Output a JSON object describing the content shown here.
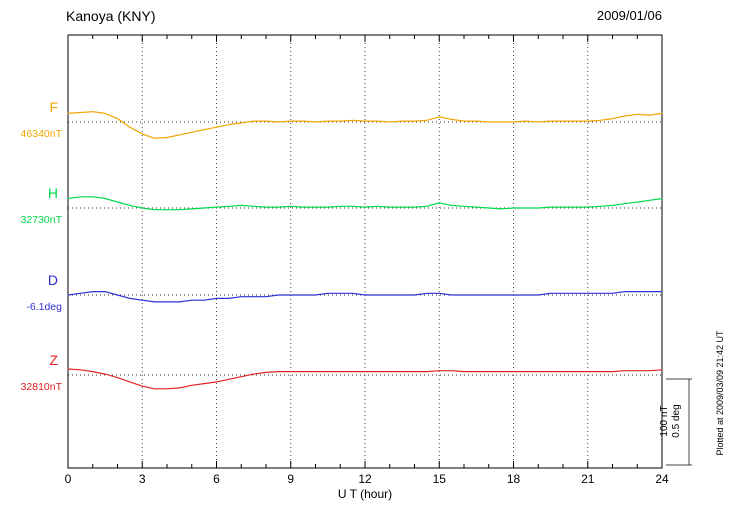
{
  "header": {
    "title": "Kanoya (KNY)",
    "date": "2009/01/06"
  },
  "footer": {
    "plotted_at": "Plotted at 2009/03/09 21:42 UT"
  },
  "scalebar": {
    "label_nt": "100 nT",
    "label_deg": "0.5 deg"
  },
  "chart_data": {
    "type": "line",
    "title": "Kanoya (KNY)",
    "date": "2009/01/06",
    "xlabel": "U T (hour)",
    "x_unit": "hour",
    "x_range": [
      0,
      24
    ],
    "x_ticks": [
      0,
      3,
      6,
      9,
      12,
      15,
      18,
      21,
      24
    ],
    "grid": "dotted-vertical-at-ticks-and-dotted-baselines",
    "legend_position": "left-of-traces",
    "sample_step_hours": 0.5,
    "scale_per_division": {
      "nT": 100,
      "deg": 0.5
    },
    "series": [
      {
        "name": "F",
        "baseline_value": 46340,
        "baseline_label": "46340nT",
        "unit": "nT",
        "color": "#f0a500",
        "deviation_values": [
          10,
          11,
          12,
          10,
          4,
          -6,
          -14,
          -19,
          -18,
          -15,
          -12,
          -9,
          -6,
          -3,
          -1,
          1,
          1,
          0,
          1,
          1,
          0,
          1,
          1,
          2,
          1,
          1,
          0,
          1,
          1,
          2,
          6,
          3,
          1,
          1,
          0,
          0,
          0,
          1,
          0,
          1,
          1,
          1,
          1,
          2,
          4,
          7,
          9,
          8,
          10
        ]
      },
      {
        "name": "H",
        "baseline_value": 32730,
        "baseline_label": "32730nT",
        "unit": "nT",
        "color": "#00d94a",
        "deviation_values": [
          11,
          13,
          13,
          11,
          7,
          3,
          0,
          -2,
          -2,
          -2,
          -1,
          0,
          1,
          2,
          3,
          2,
          1,
          1,
          2,
          1,
          1,
          1,
          2,
          2,
          1,
          2,
          1,
          1,
          1,
          2,
          6,
          3,
          2,
          1,
          0,
          -1,
          0,
          0,
          0,
          1,
          1,
          1,
          1,
          2,
          3,
          5,
          7,
          9,
          11
        ]
      },
      {
        "name": "D",
        "baseline_value": -6.1,
        "baseline_label": "-6.1deg",
        "unit": "deg",
        "color": "#2f2fd3",
        "deviation_values": [
          0,
          0.01,
          0.02,
          0.02,
          0,
          -0.02,
          -0.03,
          -0.04,
          -0.04,
          -0.04,
          -0.03,
          -0.03,
          -0.02,
          -0.02,
          -0.01,
          -0.01,
          -0.01,
          0,
          0,
          0,
          0,
          0.01,
          0.01,
          0.01,
          0,
          0,
          0,
          0,
          0,
          0.01,
          0.01,
          0,
          0,
          0,
          0,
          0,
          0,
          0,
          0,
          0.01,
          0.01,
          0.01,
          0.01,
          0.01,
          0.01,
          0.02,
          0.02,
          0.02,
          0.02
        ]
      },
      {
        "name": "Z",
        "baseline_value": 32810,
        "baseline_label": "32810nT",
        "unit": "nT",
        "color": "#e02222",
        "deviation_values": [
          7,
          6,
          4,
          1,
          -3,
          -8,
          -13,
          -16,
          -16,
          -15,
          -12,
          -10,
          -8,
          -5,
          -2,
          1,
          3,
          4,
          4,
          4,
          4,
          4,
          4,
          4,
          4,
          4,
          4,
          4,
          4,
          4,
          5,
          5,
          4,
          4,
          4,
          4,
          4,
          4,
          4,
          4,
          4,
          4,
          4,
          4,
          4,
          5,
          5,
          5,
          6
        ]
      }
    ]
  }
}
